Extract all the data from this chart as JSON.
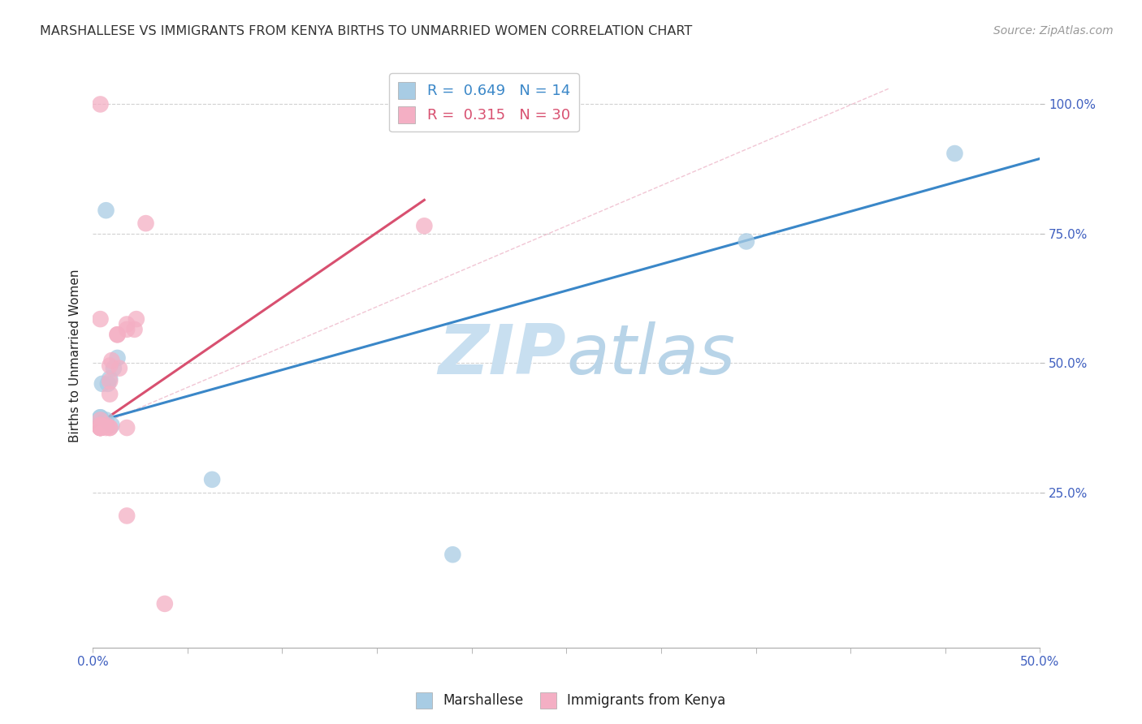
{
  "title": "MARSHALLESE VS IMMIGRANTS FROM KENYA BIRTHS TO UNMARRIED WOMEN CORRELATION CHART",
  "source": "Source: ZipAtlas.com",
  "ylabel": "Births to Unmarried Women",
  "xlim": [
    0.0,
    0.5
  ],
  "ylim": [
    -0.05,
    1.08
  ],
  "xtick_vals": [
    0.0,
    0.5
  ],
  "xtick_labels": [
    "0.0%",
    "50.0%"
  ],
  "xtick_minor_vals": [
    0.05,
    0.1,
    0.15,
    0.2,
    0.25,
    0.3,
    0.35,
    0.4,
    0.45
  ],
  "ytick_vals": [
    0.25,
    0.5,
    0.75,
    1.0
  ],
  "ytick_labels": [
    "25.0%",
    "50.0%",
    "75.0%",
    "100.0%"
  ],
  "blue_scatter_x": [
    0.004,
    0.007,
    0.005,
    0.008,
    0.009,
    0.011,
    0.01,
    0.013,
    0.004,
    0.007,
    0.063,
    0.19,
    0.455,
    0.345
  ],
  "blue_scatter_y": [
    0.395,
    0.795,
    0.46,
    0.46,
    0.47,
    0.49,
    0.38,
    0.51,
    0.395,
    0.39,
    0.275,
    0.13,
    0.905,
    0.735
  ],
  "pink_scatter_x": [
    0.004,
    0.004,
    0.004,
    0.009,
    0.009,
    0.013,
    0.013,
    0.014,
    0.018,
    0.018,
    0.022,
    0.023,
    0.028,
    0.004,
    0.004,
    0.007,
    0.007,
    0.009,
    0.009,
    0.009,
    0.01,
    0.004,
    0.004,
    0.004,
    0.018,
    0.004,
    0.038,
    0.018,
    0.175,
    0.004
  ],
  "pink_scatter_y": [
    1.0,
    0.38,
    0.375,
    0.375,
    0.44,
    0.555,
    0.555,
    0.49,
    0.575,
    0.565,
    0.565,
    0.585,
    0.77,
    0.375,
    0.375,
    0.375,
    0.38,
    0.375,
    0.465,
    0.495,
    0.505,
    0.375,
    0.375,
    0.39,
    0.375,
    0.38,
    0.035,
    0.205,
    0.765,
    0.585
  ],
  "blue_line_x": [
    0.0,
    0.5
  ],
  "blue_line_y": [
    0.385,
    0.895
  ],
  "pink_line_x": [
    0.0,
    0.175
  ],
  "pink_line_y": [
    0.375,
    0.815
  ],
  "pink_dash_line_x": [
    0.0,
    0.42
  ],
  "pink_dash_line_y": [
    0.375,
    1.03
  ],
  "R_blue": "0.649",
  "N_blue": "14",
  "R_pink": "0.315",
  "N_pink": "30",
  "blue_color": "#a8cce4",
  "pink_color": "#f4afc4",
  "blue_line_color": "#3a87c8",
  "pink_line_color": "#d85070",
  "pink_dash_color": "#e8a0b8",
  "title_color": "#333333",
  "axis_label_color": "#222222",
  "tick_color": "#4060c0",
  "grid_color": "#cccccc",
  "watermark_zip_color": "#c8dff0",
  "watermark_atlas_color": "#b8d4e8",
  "legend_label_blue": "Marshallese",
  "legend_label_pink": "Immigrants from Kenya",
  "source_color": "#999999",
  "legend_text_color": "#3a87c8"
}
